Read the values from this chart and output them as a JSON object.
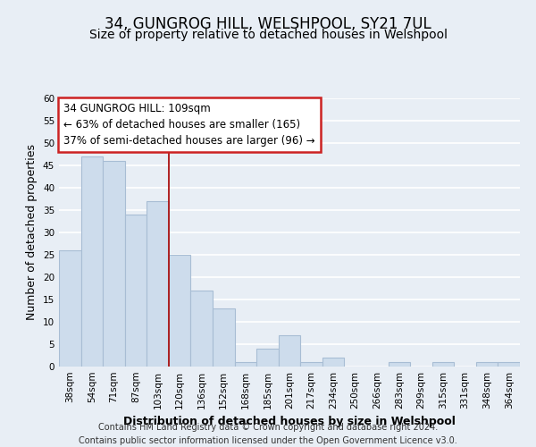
{
  "title": "34, GUNGROG HILL, WELSHPOOL, SY21 7UL",
  "subtitle": "Size of property relative to detached houses in Welshpool",
  "xlabel": "Distribution of detached houses by size in Welshpool",
  "ylabel": "Number of detached properties",
  "categories": [
    "38sqm",
    "54sqm",
    "71sqm",
    "87sqm",
    "103sqm",
    "120sqm",
    "136sqm",
    "152sqm",
    "168sqm",
    "185sqm",
    "201sqm",
    "217sqm",
    "234sqm",
    "250sqm",
    "266sqm",
    "283sqm",
    "299sqm",
    "315sqm",
    "331sqm",
    "348sqm",
    "364sqm"
  ],
  "values": [
    26,
    47,
    46,
    34,
    37,
    25,
    17,
    13,
    1,
    4,
    7,
    1,
    2,
    0,
    0,
    1,
    0,
    1,
    0,
    1,
    1
  ],
  "bar_color": "#cddcec",
  "bar_edge_color": "#a8bdd4",
  "highlight_line_color": "#aa1111",
  "annotation_title": "34 GUNGROG HILL: 109sqm",
  "annotation_line1": "← 63% of detached houses are smaller (165)",
  "annotation_line2": "37% of semi-detached houses are larger (96) →",
  "annotation_box_facecolor": "#ffffff",
  "annotation_box_edgecolor": "#cc2222",
  "ylim": [
    0,
    60
  ],
  "yticks": [
    0,
    5,
    10,
    15,
    20,
    25,
    30,
    35,
    40,
    45,
    50,
    55,
    60
  ],
  "footer_line1": "Contains HM Land Registry data © Crown copyright and database right 2024.",
  "footer_line2": "Contains public sector information licensed under the Open Government Licence v3.0.",
  "plot_bg_color": "#e8eef5",
  "fig_bg_color": "#e8eef5",
  "grid_color": "#ffffff",
  "title_fontsize": 12,
  "subtitle_fontsize": 10,
  "ylabel_fontsize": 9,
  "xlabel_fontsize": 9,
  "tick_fontsize": 7.5,
  "annotation_fontsize": 8.5,
  "footer_fontsize": 7
}
